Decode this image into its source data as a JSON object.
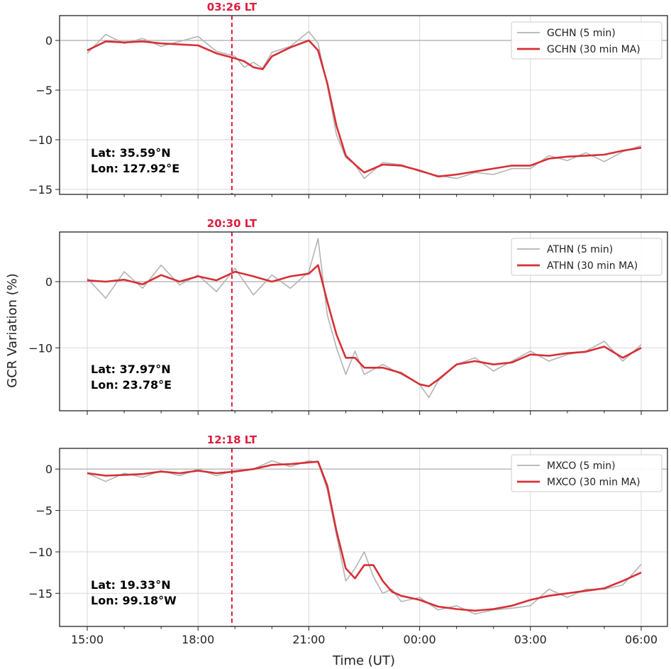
{
  "chart_data": [
    {
      "type": "line",
      "xlabel": "",
      "ylabel": "",
      "xlim": [
        "15:00",
        "06:00"
      ],
      "ylim": [
        -15.5,
        2.5
      ],
      "x_ticks": [
        "15:00",
        "18:00",
        "21:00",
        "00:00",
        "03:00",
        "06:00"
      ],
      "y_ticks": [
        0,
        -5,
        -10,
        -15
      ],
      "local_time_marker": {
        "x": "18:55",
        "label": "03:26 LT"
      },
      "location": {
        "lat": "Lat: 35.59°N",
        "lon": "Lon: 127.92°E"
      },
      "legend_position": "top-right",
      "x": [
        "15:00",
        "15:30",
        "16:00",
        "16:30",
        "17:00",
        "17:30",
        "18:00",
        "18:30",
        "19:00",
        "19:15",
        "19:30",
        "19:45",
        "20:00",
        "20:30",
        "21:00",
        "21:15",
        "21:30",
        "21:45",
        "22:00",
        "22:15",
        "22:30",
        "23:00",
        "23:30",
        "00:00",
        "00:30",
        "01:00",
        "01:30",
        "02:00",
        "02:30",
        "03:00",
        "03:30",
        "04:00",
        "04:30",
        "05:00",
        "05:30",
        "06:00"
      ],
      "series": [
        {
          "name": "GCHN (5 min)",
          "values": [
            -1.3,
            0.6,
            -0.3,
            0.2,
            -0.6,
            -0.1,
            0.4,
            -1.1,
            -1.6,
            -2.7,
            -2.2,
            -2.8,
            -1.2,
            -0.6,
            0.9,
            -0.3,
            -4.5,
            -9.5,
            -11.8,
            -12.5,
            -13.9,
            -12.3,
            -12.5,
            -13.2,
            -13.6,
            -13.9,
            -13.3,
            -13.5,
            -12.9,
            -12.9,
            -11.6,
            -12.1,
            -11.3,
            -12.2,
            -11.2,
            -10.6
          ]
        },
        {
          "name": "GCHN (30 min MA)",
          "values": [
            -1.0,
            -0.1,
            -0.2,
            -0.1,
            -0.3,
            -0.4,
            -0.5,
            -1.3,
            -1.8,
            -2.1,
            -2.7,
            -2.9,
            -1.6,
            -0.7,
            0.0,
            -1.0,
            -4.3,
            -8.6,
            -11.6,
            -12.5,
            -13.3,
            -12.5,
            -12.6,
            -13.1,
            -13.7,
            -13.5,
            -13.2,
            -12.9,
            -12.6,
            -12.6,
            -11.9,
            -11.7,
            -11.6,
            -11.5,
            -11.1,
            -10.8
          ]
        }
      ]
    },
    {
      "type": "line",
      "xlabel": "",
      "ylabel": "GCR Variation (%)",
      "xlim": [
        "15:00",
        "06:00"
      ],
      "ylim": [
        -19.5,
        7.5
      ],
      "x_ticks": [
        "15:00",
        "18:00",
        "21:00",
        "00:00",
        "03:00",
        "06:00"
      ],
      "y_ticks": [
        0,
        -10
      ],
      "local_time_marker": {
        "x": "18:55",
        "label": "20:30 LT"
      },
      "location": {
        "lat": "Lat: 37.97°N",
        "lon": "Lon: 23.78°E"
      },
      "legend_position": "top-right",
      "x": [
        "15:00",
        "15:30",
        "16:00",
        "16:30",
        "17:00",
        "17:30",
        "18:00",
        "18:30",
        "19:00",
        "19:30",
        "20:00",
        "20:30",
        "21:00",
        "21:15",
        "21:30",
        "21:45",
        "22:00",
        "22:15",
        "22:30",
        "23:00",
        "23:30",
        "00:00",
        "00:15",
        "00:30",
        "01:00",
        "01:30",
        "02:00",
        "02:30",
        "03:00",
        "03:30",
        "04:00",
        "04:30",
        "05:00",
        "05:30",
        "06:00"
      ],
      "series": [
        {
          "name": "ATHN (5 min)",
          "values": [
            0.5,
            -2.5,
            1.5,
            -1.0,
            2.5,
            -0.5,
            1.0,
            -1.5,
            2.0,
            -2.0,
            1.0,
            -1.0,
            1.5,
            6.5,
            -5.0,
            -10.0,
            -14.0,
            -10.5,
            -14.0,
            -12.5,
            -14.0,
            -15.5,
            -17.5,
            -15.0,
            -12.5,
            -11.5,
            -13.5,
            -12.0,
            -10.5,
            -12.0,
            -11.0,
            -10.5,
            -9.0,
            -12.0,
            -9.5
          ]
        },
        {
          "name": "ATHN (30 min MA)",
          "values": [
            0.2,
            0.0,
            0.3,
            -0.4,
            1.0,
            0.0,
            0.8,
            0.2,
            1.5,
            0.8,
            0.0,
            0.8,
            1.2,
            2.5,
            -3.0,
            -8.0,
            -11.5,
            -11.5,
            -13.0,
            -13.0,
            -13.8,
            -15.5,
            -15.8,
            -14.8,
            -12.5,
            -12.0,
            -12.5,
            -12.2,
            -11.0,
            -11.2,
            -10.8,
            -10.6,
            -9.8,
            -11.5,
            -10.0
          ]
        }
      ]
    },
    {
      "type": "line",
      "xlabel": "Time (UT)",
      "ylabel": "",
      "xlim": [
        "15:00",
        "06:00"
      ],
      "ylim": [
        -19,
        2.5
      ],
      "x_ticks": [
        "15:00",
        "18:00",
        "21:00",
        "00:00",
        "03:00",
        "06:00"
      ],
      "y_ticks": [
        0,
        -5,
        -10,
        -15
      ],
      "local_time_marker": {
        "x": "18:55",
        "label": "12:18 LT"
      },
      "location": {
        "lat": "Lat: 19.33°N",
        "lon": "Lon: 99.18°W"
      },
      "legend_position": "top-right",
      "x": [
        "15:00",
        "15:30",
        "16:00",
        "16:30",
        "17:00",
        "17:30",
        "18:00",
        "18:30",
        "19:00",
        "19:30",
        "20:00",
        "20:30",
        "21:00",
        "21:15",
        "21:30",
        "21:45",
        "22:00",
        "22:15",
        "22:30",
        "22:45",
        "23:00",
        "23:15",
        "23:30",
        "00:00",
        "00:30",
        "01:00",
        "01:30",
        "02:00",
        "02:30",
        "03:00",
        "03:30",
        "04:00",
        "04:30",
        "05:00",
        "05:30",
        "06:00"
      ],
      "series": [
        {
          "name": "MXCO (5 min)",
          "values": [
            -0.5,
            -1.5,
            -0.5,
            -1.0,
            -0.2,
            -0.8,
            0.0,
            -0.8,
            -0.2,
            0.0,
            1.0,
            0.3,
            1.0,
            0.8,
            -2.5,
            -8.0,
            -13.5,
            -12.0,
            -10.0,
            -13.0,
            -15.0,
            -14.5,
            -16.0,
            -15.5,
            -17.0,
            -16.5,
            -17.5,
            -17.0,
            -16.8,
            -16.5,
            -14.5,
            -15.5,
            -14.5,
            -14.5,
            -14.0,
            -11.5
          ]
        },
        {
          "name": "MXCO (30 min MA)",
          "values": [
            -0.5,
            -0.8,
            -0.7,
            -0.6,
            -0.3,
            -0.5,
            -0.2,
            -0.5,
            -0.3,
            0.0,
            0.5,
            0.6,
            0.8,
            0.9,
            -2.0,
            -7.5,
            -12.0,
            -13.2,
            -11.6,
            -11.6,
            -13.5,
            -14.8,
            -15.3,
            -15.8,
            -16.6,
            -16.9,
            -17.1,
            -16.9,
            -16.5,
            -15.8,
            -15.3,
            -15.0,
            -14.7,
            -14.4,
            -13.5,
            -12.5
          ]
        }
      ]
    }
  ],
  "colors": {
    "raw": "#b3b3b3",
    "ma": "#d62f35",
    "marker": "#dc1e3c",
    "grid": "#d9d9d9",
    "zero_line": "#aaaaaa"
  }
}
